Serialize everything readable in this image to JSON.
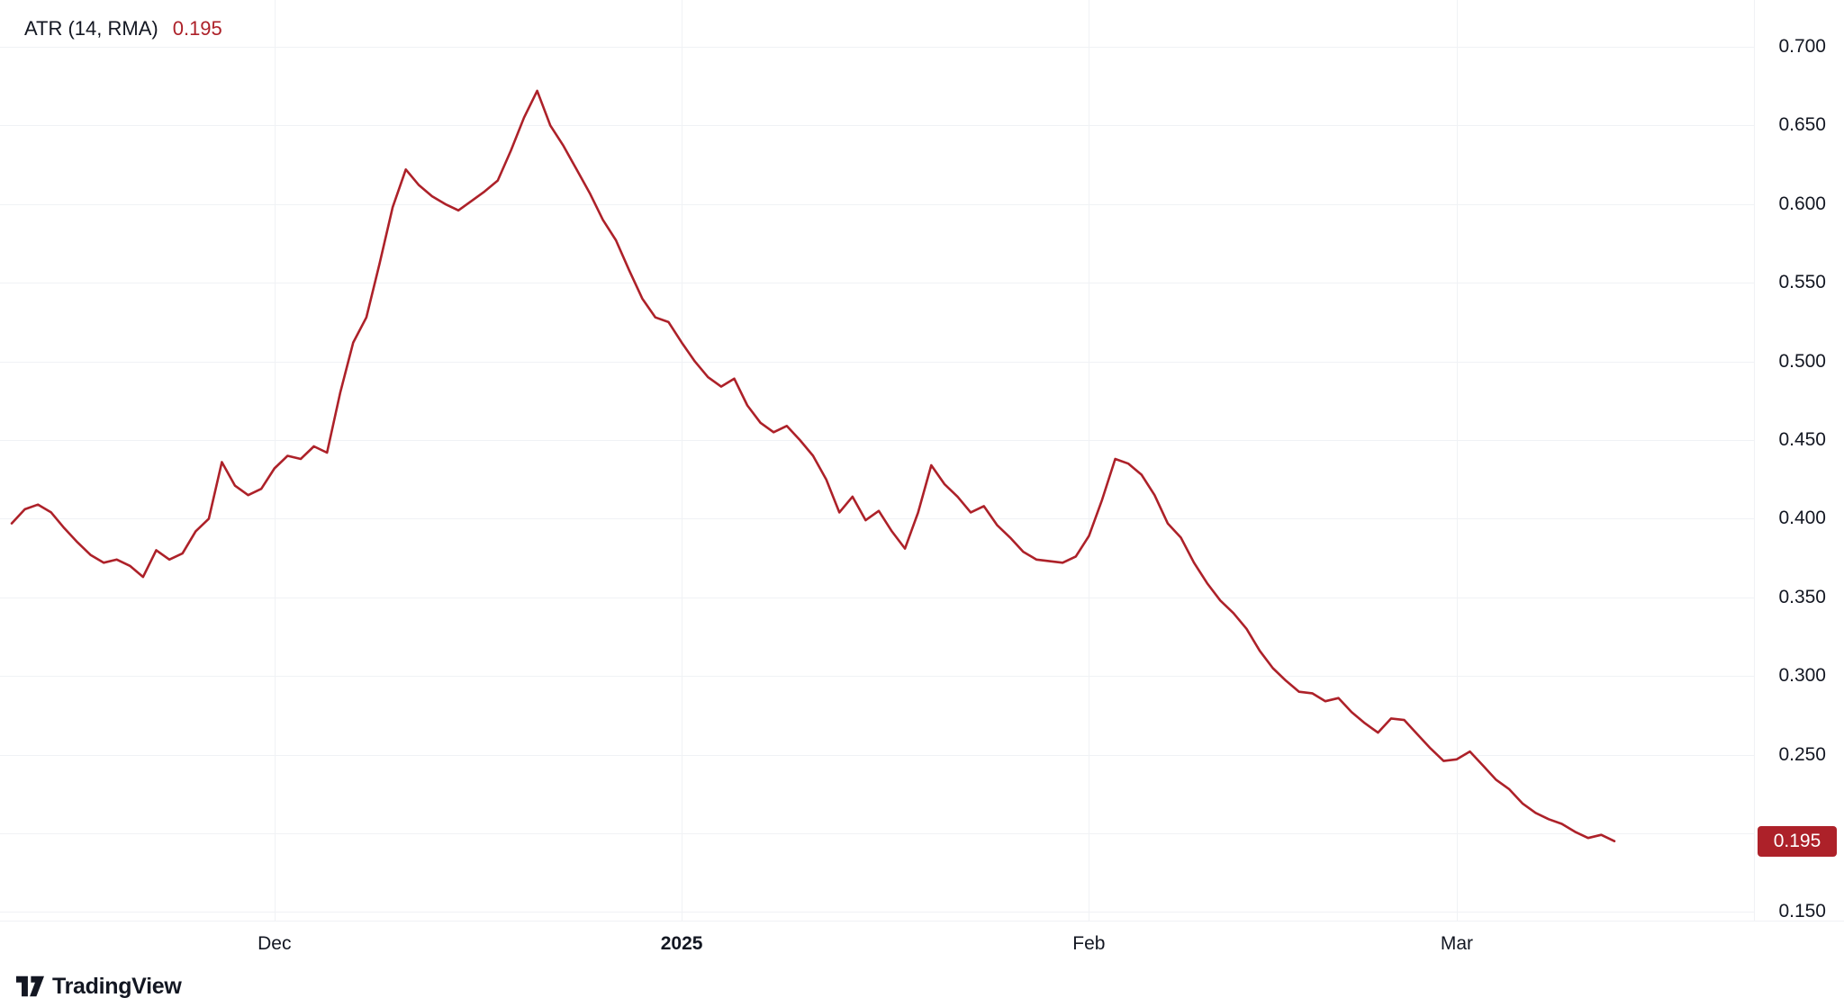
{
  "legend": {
    "title": "ATR (14, RMA)",
    "value": "0.195"
  },
  "footer": {
    "brand": "TradingView"
  },
  "colors": {
    "line": "#ad2129",
    "badge_bg": "#ad2129",
    "badge_text": "#ffffff",
    "legend_value": "#ad2129",
    "grid": "#f0f2f5",
    "axis_text": "#131722",
    "background": "#ffffff"
  },
  "y_axis": {
    "visible_labels": [
      "0.700",
      "0.650",
      "0.600",
      "0.550",
      "0.500",
      "0.450",
      "0.400",
      "0.350",
      "0.300",
      "0.250",
      "0.150"
    ]
  },
  "x_axis": {
    "labels": [
      {
        "text": "Dec",
        "index": 20,
        "bold": false
      },
      {
        "text": "2025",
        "index": 51,
        "bold": true
      },
      {
        "text": "Feb",
        "index": 82,
        "bold": false
      },
      {
        "text": "Mar",
        "index": 110,
        "bold": false
      }
    ]
  },
  "chart_data": {
    "type": "line",
    "title": "ATR (14, RMA)",
    "series_name": "ATR 14 RMA",
    "last_value": 0.195,
    "ylim": [
      0.14,
      0.71
    ],
    "y_ticks": [
      0.7,
      0.65,
      0.6,
      0.55,
      0.5,
      0.45,
      0.4,
      0.35,
      0.3,
      0.25,
      0.2,
      0.15
    ],
    "y_label_ticks": [
      0.7,
      0.65,
      0.6,
      0.55,
      0.5,
      0.45,
      0.4,
      0.35,
      0.3,
      0.25,
      0.15
    ],
    "x_tick_labels": [
      "Dec",
      "2025",
      "Feb",
      "Mar"
    ],
    "x_tick_indices": [
      20,
      51,
      82,
      110
    ],
    "grid": true,
    "legend_position": "top-left",
    "axis_position": "right",
    "values": [
      0.397,
      0.406,
      0.409,
      0.404,
      0.394,
      0.385,
      0.377,
      0.372,
      0.374,
      0.37,
      0.363,
      0.38,
      0.374,
      0.378,
      0.392,
      0.4,
      0.436,
      0.421,
      0.415,
      0.419,
      0.432,
      0.44,
      0.438,
      0.446,
      0.442,
      0.48,
      0.512,
      0.528,
      0.562,
      0.598,
      0.622,
      0.612,
      0.605,
      0.6,
      0.596,
      0.602,
      0.608,
      0.615,
      0.634,
      0.655,
      0.672,
      0.65,
      0.637,
      0.622,
      0.607,
      0.59,
      0.577,
      0.558,
      0.54,
      0.528,
      0.525,
      0.512,
      0.5,
      0.49,
      0.484,
      0.489,
      0.472,
      0.461,
      0.455,
      0.459,
      0.45,
      0.44,
      0.425,
      0.404,
      0.414,
      0.399,
      0.405,
      0.392,
      0.381,
      0.404,
      0.434,
      0.422,
      0.414,
      0.404,
      0.408,
      0.396,
      0.388,
      0.379,
      0.374,
      0.373,
      0.372,
      0.376,
      0.389,
      0.412,
      0.438,
      0.435,
      0.428,
      0.415,
      0.397,
      0.388,
      0.372,
      0.359,
      0.348,
      0.34,
      0.33,
      0.316,
      0.305,
      0.297,
      0.29,
      0.289,
      0.284,
      0.286,
      0.277,
      0.27,
      0.264,
      0.273,
      0.272,
      0.263,
      0.254,
      0.246,
      0.247,
      0.252,
      0.243,
      0.234,
      0.228,
      0.219,
      0.213,
      0.209,
      0.206,
      0.201,
      0.197,
      0.199,
      0.195
    ]
  }
}
